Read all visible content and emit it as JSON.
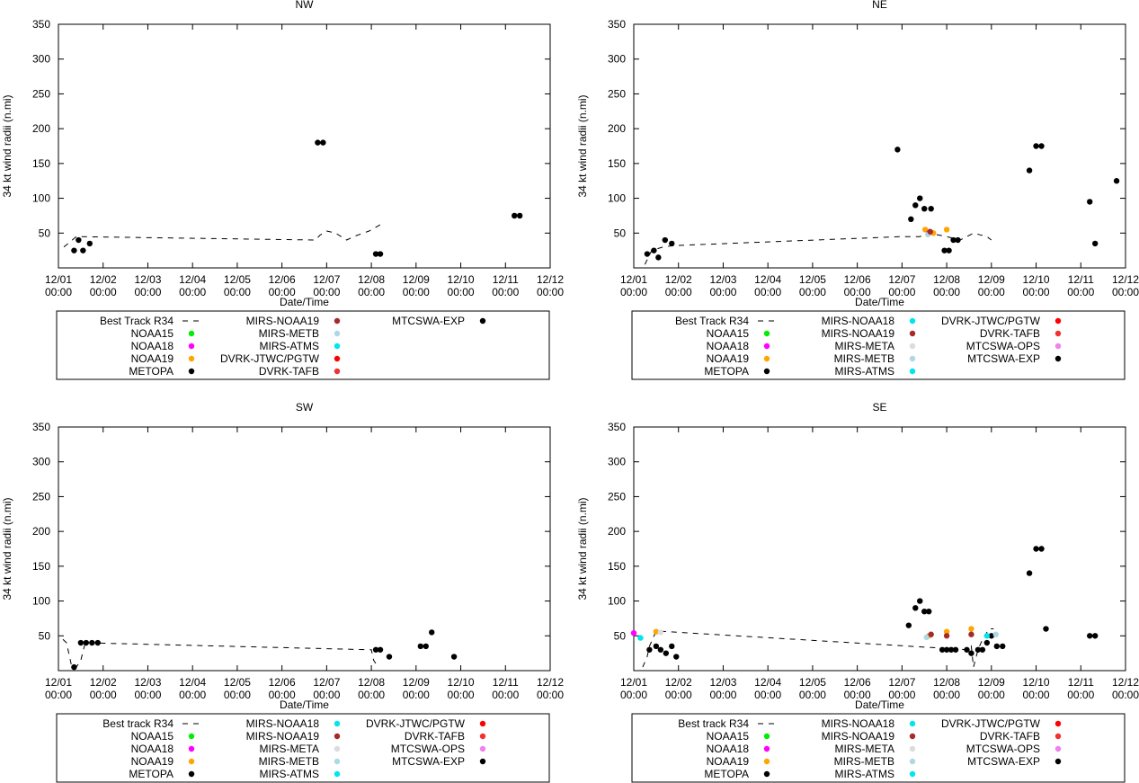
{
  "chart_data": [
    {
      "type": "scatter",
      "title": "NW",
      "xlabel": "Date/Time",
      "ylabel": "34 kt wind radii (n.mi)",
      "xlim": [
        0,
        11
      ],
      "ylim": [
        0,
        350
      ],
      "yticks": [
        50,
        100,
        150,
        200,
        250,
        300,
        350
      ],
      "xticks": [
        {
          "x": 0,
          "line1": "12/01",
          "line2": "00:00"
        },
        {
          "x": 1,
          "line1": "12/02",
          "line2": "00:00"
        },
        {
          "x": 2,
          "line1": "12/03",
          "line2": "00:00"
        },
        {
          "x": 3,
          "line1": "12/04",
          "line2": "00:00"
        },
        {
          "x": 4,
          "line1": "12/05",
          "line2": "00:00"
        },
        {
          "x": 5,
          "line1": "12/06",
          "line2": "00:00"
        },
        {
          "x": 6,
          "line1": "12/07",
          "line2": "00:00"
        },
        {
          "x": 7,
          "line1": "12/08",
          "line2": "00:00"
        },
        {
          "x": 8,
          "line1": "12/09",
          "line2": "00:00"
        },
        {
          "x": 9,
          "line1": "12/10",
          "line2": "00:00"
        },
        {
          "x": 10,
          "line1": "12/11",
          "line2": "00:00"
        },
        {
          "x": 11,
          "line1": "12/12",
          "line2": "00:00"
        }
      ],
      "best_track": {
        "x": [
          0.12,
          0.4,
          5.75,
          5.85,
          6.0,
          6.2,
          6.45,
          6.6,
          6.95,
          7.2
        ],
        "y": [
          30,
          45,
          40,
          47,
          53,
          50,
          40,
          45,
          53,
          62
        ]
      },
      "series": [
        {
          "name": "METOPA",
          "color": "#000000",
          "points": [
            [
              0.35,
              25
            ],
            [
              0.45,
              40
            ],
            [
              0.55,
              25
            ],
            [
              0.7,
              35
            ],
            [
              5.8,
              180
            ],
            [
              5.92,
              180
            ],
            [
              7.1,
              20
            ],
            [
              7.2,
              20
            ],
            [
              10.2,
              75
            ],
            [
              10.32,
              75
            ]
          ]
        }
      ],
      "legend": [
        [
          "Best Track R34",
          "line",
          "#000000"
        ],
        [
          "NOAA15",
          "dot",
          "#00ee00"
        ],
        [
          "NOAA18",
          "dot",
          "#ff00ff"
        ],
        [
          "NOAA19",
          "dot",
          "#ffa500"
        ],
        [
          "METOPA",
          "dot",
          "#000000"
        ],
        [
          "MIRS-NOAA19",
          "dot",
          "#a52a2a"
        ],
        [
          "MIRS-METB",
          "dot",
          "#add8e6"
        ],
        [
          "MIRS-ATMS",
          "dot",
          "#00e5ee"
        ],
        [
          "DVRK-JTWC/PGTW",
          "dot",
          "#ff0000"
        ],
        [
          "DVRK-TAFB",
          "dot",
          "#f03232"
        ],
        [
          "MTCSWA-EXP",
          "dot",
          "#000000"
        ]
      ]
    },
    {
      "type": "scatter",
      "title": "NE",
      "xlabel": "Date/Time",
      "ylabel": "34 kt wind radii (n.mi)",
      "xlim": [
        0,
        11
      ],
      "ylim": [
        0,
        350
      ],
      "yticks": [
        50,
        100,
        150,
        200,
        250,
        300,
        350
      ],
      "xticks": [
        {
          "x": 0,
          "line1": "12/01",
          "line2": "00:00"
        },
        {
          "x": 1,
          "line1": "12/02",
          "line2": "00:00"
        },
        {
          "x": 2,
          "line1": "12/03",
          "line2": "00:00"
        },
        {
          "x": 3,
          "line1": "12/04",
          "line2": "00:00"
        },
        {
          "x": 4,
          "line1": "12/05",
          "line2": "00:00"
        },
        {
          "x": 5,
          "line1": "12/06",
          "line2": "00:00"
        },
        {
          "x": 6,
          "line1": "12/07",
          "line2": "00:00"
        },
        {
          "x": 7,
          "line1": "12/08",
          "line2": "00:00"
        },
        {
          "x": 8,
          "line1": "12/09",
          "line2": "00:00"
        },
        {
          "x": 9,
          "line1": "12/10",
          "line2": "00:00"
        },
        {
          "x": 10,
          "line1": "12/11",
          "line2": "00:00"
        },
        {
          "x": 11,
          "line1": "12/12",
          "line2": "00:00"
        }
      ],
      "best_track": {
        "x": [
          0.25,
          0.4,
          0.65,
          0.9,
          6.0,
          6.4,
          6.6,
          7.0,
          7.3,
          7.6,
          7.9,
          8.0
        ],
        "y": [
          5,
          25,
          30,
          32,
          45,
          45,
          50,
          45,
          40,
          50,
          45,
          40
        ]
      },
      "series": [
        {
          "name": "METOPA",
          "color": "#000000",
          "points": [
            [
              0.3,
              20
            ],
            [
              0.45,
              25
            ],
            [
              0.55,
              15
            ],
            [
              0.7,
              40
            ],
            [
              0.85,
              35
            ],
            [
              5.9,
              170
            ],
            [
              6.2,
              70
            ],
            [
              6.3,
              90
            ],
            [
              6.4,
              100
            ],
            [
              6.5,
              85
            ],
            [
              6.65,
              85
            ],
            [
              6.95,
              25
            ],
            [
              7.05,
              25
            ],
            [
              7.15,
              40
            ],
            [
              7.25,
              40
            ],
            [
              8.85,
              140
            ],
            [
              9.0,
              175
            ],
            [
              9.12,
              175
            ],
            [
              10.2,
              95
            ],
            [
              10.32,
              35
            ],
            [
              10.8,
              125
            ]
          ]
        },
        {
          "name": "NOAA19",
          "color": "#ffa500",
          "points": [
            [
              6.52,
              55
            ],
            [
              6.7,
              50
            ],
            [
              7.0,
              55
            ]
          ]
        },
        {
          "name": "NOAA18",
          "color": "#ff00ff",
          "points": [
            [
              6.6,
              50
            ]
          ]
        },
        {
          "name": "MIRS-METB",
          "color": "#add8e6",
          "points": [
            [
              6.58,
              48
            ]
          ]
        },
        {
          "name": "MIRS-NOAA19",
          "color": "#a52a2a",
          "points": [
            [
              6.63,
              52
            ]
          ]
        }
      ],
      "legend": [
        [
          "Best Track R34",
          "line",
          "#000000"
        ],
        [
          "NOAA15",
          "dot",
          "#00ee00"
        ],
        [
          "NOAA18",
          "dot",
          "#ff00ff"
        ],
        [
          "NOAA19",
          "dot",
          "#ffa500"
        ],
        [
          "METOPA",
          "dot",
          "#000000"
        ],
        [
          "MIRS-NOAA18",
          "dot",
          "#00e5ee"
        ],
        [
          "MIRS-NOAA19",
          "dot",
          "#a52a2a"
        ],
        [
          "MIRS-META",
          "dot",
          "#dcdcdc"
        ],
        [
          "MIRS-METB",
          "dot",
          "#add8e6"
        ],
        [
          "MIRS-ATMS",
          "dot",
          "#00e5ee"
        ],
        [
          "DVRK-JTWC/PGTW",
          "dot",
          "#ff0000"
        ],
        [
          "DVRK-TAFB",
          "dot",
          "#f03232"
        ],
        [
          "MTCSWA-OPS",
          "dot",
          "#ee82ee"
        ],
        [
          "MTCSWA-EXP",
          "dot",
          "#000000"
        ]
      ]
    },
    {
      "type": "scatter",
      "title": "SW",
      "xlabel": "Date/Time",
      "ylabel": "34 kt wind radii (n.mi)",
      "xlim": [
        0,
        11
      ],
      "ylim": [
        0,
        350
      ],
      "yticks": [
        50,
        100,
        150,
        200,
        250,
        300,
        350
      ],
      "xticks": [
        {
          "x": 0,
          "line1": "12/01",
          "line2": "00:00"
        },
        {
          "x": 1,
          "line1": "12/02",
          "line2": "00:00"
        },
        {
          "x": 2,
          "line1": "12/03",
          "line2": "00:00"
        },
        {
          "x": 3,
          "line1": "12/04",
          "line2": "00:00"
        },
        {
          "x": 4,
          "line1": "12/05",
          "line2": "00:00"
        },
        {
          "x": 5,
          "line1": "12/06",
          "line2": "00:00"
        },
        {
          "x": 6,
          "line1": "12/07",
          "line2": "00:00"
        },
        {
          "x": 7,
          "line1": "12/08",
          "line2": "00:00"
        },
        {
          "x": 8,
          "line1": "12/09",
          "line2": "00:00"
        },
        {
          "x": 9,
          "line1": "12/10",
          "line2": "00:00"
        },
        {
          "x": 10,
          "line1": "12/11",
          "line2": "00:00"
        },
        {
          "x": 11,
          "line1": "12/12",
          "line2": "00:00"
        }
      ],
      "best_track": {
        "x": [
          0.1,
          0.18,
          0.3,
          0.4,
          0.5,
          0.6,
          7.0,
          7.05,
          7.15
        ],
        "y": [
          45,
          40,
          5,
          5,
          15,
          40,
          30,
          15,
          5
        ]
      },
      "series": [
        {
          "name": "METOPA",
          "color": "#000000",
          "points": [
            [
              0.5,
              40
            ],
            [
              0.62,
              40
            ],
            [
              0.75,
              40
            ],
            [
              0.88,
              40
            ],
            [
              0.35,
              5
            ],
            [
              7.1,
              30
            ],
            [
              7.2,
              30
            ],
            [
              7.4,
              20
            ],
            [
              8.1,
              35
            ],
            [
              8.22,
              35
            ],
            [
              8.35,
              55
            ],
            [
              8.85,
              20
            ]
          ]
        }
      ],
      "legend": [
        [
          "Best track R34",
          "line",
          "#000000"
        ],
        [
          "NOAA15",
          "dot",
          "#00ee00"
        ],
        [
          "NOAA18",
          "dot",
          "#ff00ff"
        ],
        [
          "NOAA19",
          "dot",
          "#ffa500"
        ],
        [
          "METOPA",
          "dot",
          "#000000"
        ],
        [
          "MIRS-NOAA18",
          "dot",
          "#00e5ee"
        ],
        [
          "MIRS-NOAA19",
          "dot",
          "#a52a2a"
        ],
        [
          "MIRS-META",
          "dot",
          "#dcdcdc"
        ],
        [
          "MIRS-METB",
          "dot",
          "#add8e6"
        ],
        [
          "MIRS-ATMS",
          "dot",
          "#00e5ee"
        ],
        [
          "DVRK-JTWC/PGTW",
          "dot",
          "#ff0000"
        ],
        [
          "DVRK-TAFB",
          "dot",
          "#f03232"
        ],
        [
          "MTCSWA-OPS",
          "dot",
          "#ee82ee"
        ],
        [
          "MTCSWA-EXP",
          "dot",
          "#000000"
        ]
      ]
    },
    {
      "type": "scatter",
      "title": "SE",
      "xlabel": "Date/Time",
      "ylabel": "34 kt wind radii (n.mi)",
      "xlim": [
        0,
        11
      ],
      "ylim": [
        0,
        350
      ],
      "yticks": [
        50,
        100,
        150,
        200,
        250,
        300,
        350
      ],
      "xticks": [
        {
          "x": 0,
          "line1": "12/01",
          "line2": "00:00"
        },
        {
          "x": 1,
          "line1": "12/02",
          "line2": "00:00"
        },
        {
          "x": 2,
          "line1": "12/03",
          "line2": "00:00"
        },
        {
          "x": 3,
          "line1": "12/04",
          "line2": "00:00"
        },
        {
          "x": 4,
          "line1": "12/05",
          "line2": "00:00"
        },
        {
          "x": 5,
          "line1": "12/06",
          "line2": "00:00"
        },
        {
          "x": 6,
          "line1": "12/07",
          "line2": "00:00"
        },
        {
          "x": 7,
          "line1": "12/08",
          "line2": "00:00"
        },
        {
          "x": 8,
          "line1": "12/09",
          "line2": "00:00"
        },
        {
          "x": 9,
          "line1": "12/10",
          "line2": "00:00"
        },
        {
          "x": 10,
          "line1": "12/11",
          "line2": "00:00"
        },
        {
          "x": 11,
          "line1": "12/12",
          "line2": "00:00"
        }
      ],
      "best_track": {
        "x": [
          0.2,
          0.3,
          0.35,
          0.5,
          7.5,
          7.55,
          7.6,
          7.7,
          7.8,
          7.95,
          8.05
        ],
        "y": [
          5,
          20,
          35,
          57,
          30,
          35,
          5,
          30,
          45,
          60,
          60
        ]
      },
      "series": [
        {
          "name": "METOPA",
          "color": "#000000",
          "points": [
            [
              0.35,
              30
            ],
            [
              0.5,
              35
            ],
            [
              0.6,
              30
            ],
            [
              0.72,
              25
            ],
            [
              0.85,
              35
            ],
            [
              0.95,
              20
            ],
            [
              6.15,
              65
            ],
            [
              6.3,
              90
            ],
            [
              6.4,
              100
            ],
            [
              6.5,
              85
            ],
            [
              6.6,
              85
            ],
            [
              6.9,
              30
            ],
            [
              7.0,
              30
            ],
            [
              7.1,
              30
            ],
            [
              7.2,
              30
            ],
            [
              7.45,
              30
            ],
            [
              7.55,
              25
            ],
            [
              7.7,
              30
            ],
            [
              7.8,
              30
            ],
            [
              7.9,
              40
            ],
            [
              8.0,
              50
            ],
            [
              8.12,
              35
            ],
            [
              8.25,
              35
            ],
            [
              8.85,
              140
            ],
            [
              9.0,
              175
            ],
            [
              9.12,
              175
            ],
            [
              9.22,
              60
            ],
            [
              10.2,
              50
            ],
            [
              10.32,
              50
            ]
          ]
        },
        {
          "name": "NOAA18",
          "color": "#ff00ff",
          "points": [
            [
              0.0,
              54
            ]
          ]
        },
        {
          "name": "MIRS-ATMS",
          "color": "#00e5ee",
          "points": [
            [
              0.15,
              47
            ],
            [
              7.9,
              50
            ]
          ]
        },
        {
          "name": "NOAA19",
          "color": "#ffa500",
          "points": [
            [
              0.5,
              56
            ],
            [
              6.6,
              50
            ],
            [
              7.0,
              56
            ],
            [
              7.55,
              60
            ]
          ]
        },
        {
          "name": "MIRS-META",
          "color": "#dcdcdc",
          "points": [
            [
              0.6,
              55
            ]
          ]
        },
        {
          "name": "MIRS-METB",
          "color": "#add8e6",
          "points": [
            [
              6.55,
              48
            ],
            [
              8.1,
              52
            ]
          ]
        },
        {
          "name": "MIRS-NOAA19",
          "color": "#a52a2a",
          "points": [
            [
              6.65,
              52
            ],
            [
              7.0,
              50
            ],
            [
              7.55,
              52
            ]
          ]
        }
      ],
      "legend": [
        [
          "Best track R34",
          "line",
          "#000000"
        ],
        [
          "NOAA15",
          "dot",
          "#00ee00"
        ],
        [
          "NOAA18",
          "dot",
          "#ff00ff"
        ],
        [
          "NOAA19",
          "dot",
          "#ffa500"
        ],
        [
          "METOPA",
          "dot",
          "#000000"
        ],
        [
          "MIRS-NOAA18",
          "dot",
          "#00e5ee"
        ],
        [
          "MIRS-NOAA19",
          "dot",
          "#a52a2a"
        ],
        [
          "MIRS-META",
          "dot",
          "#dcdcdc"
        ],
        [
          "MIRS-METB",
          "dot",
          "#add8e6"
        ],
        [
          "MIRS-ATMS",
          "dot",
          "#00e5ee"
        ],
        [
          "DVRK-JTWC/PGTW",
          "dot",
          "#ff0000"
        ],
        [
          "DVRK-TAFB",
          "dot",
          "#f03232"
        ],
        [
          "MTCSWA-OPS",
          "dot",
          "#ee82ee"
        ],
        [
          "MTCSWA-EXP",
          "dot",
          "#000000"
        ]
      ]
    }
  ]
}
